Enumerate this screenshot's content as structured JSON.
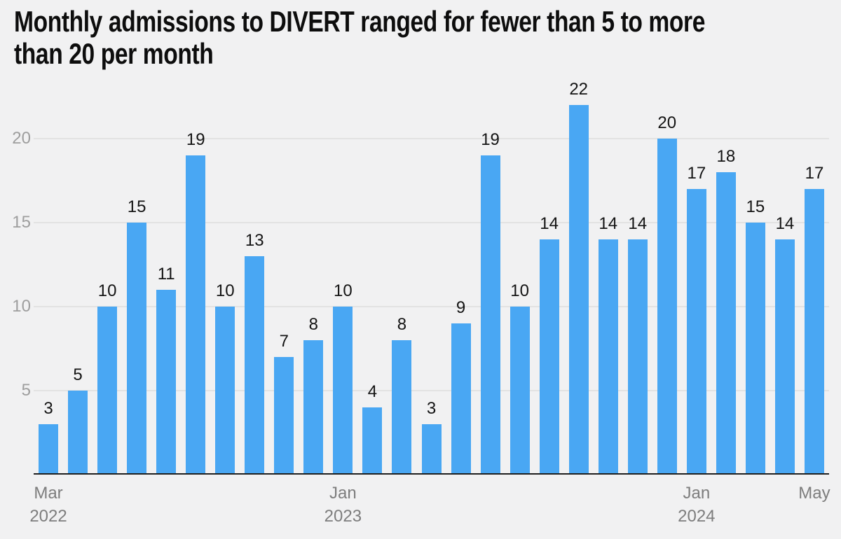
{
  "title": {
    "line1": "Monthly admissions to DIVERT ranged for fewer than 5 to more",
    "line2": "than 20 per month"
  },
  "colors": {
    "bar": "#49a7f3",
    "background": "#f1f1f2",
    "grid": "#e2e2e2",
    "axis": "#1f1f1f",
    "value_label": "#141414",
    "y_tick_label": "#9e9e9e",
    "x_tick_label": "#7d7d7d",
    "title_text": "#0d0d0d"
  },
  "chart_data": {
    "type": "bar",
    "title": "Monthly admissions to DIVERT ranged for fewer than 5 to more than 20 per month",
    "categories": [
      "Mar 2022",
      "Apr 2022",
      "May 2022",
      "Jun 2022",
      "Jul 2022",
      "Aug 2022",
      "Sep 2022",
      "Oct 2022",
      "Nov 2022",
      "Dec 2022",
      "Jan 2023",
      "Feb 2023",
      "Mar 2023",
      "Apr 2023",
      "May 2023",
      "Jun 2023",
      "Jul 2023",
      "Aug 2023",
      "Sep 2023",
      "Oct 2023",
      "Nov 2023",
      "Dec 2023",
      "Jan 2024",
      "Feb 2024",
      "Mar 2024",
      "Apr 2024",
      "May 2024"
    ],
    "values": [
      3,
      5,
      10,
      15,
      11,
      19,
      10,
      13,
      7,
      8,
      10,
      4,
      8,
      3,
      9,
      19,
      10,
      14,
      22,
      14,
      14,
      20,
      17,
      18,
      15,
      14,
      17
    ],
    "xlabel": "",
    "ylabel": "",
    "ylim": [
      0,
      23
    ],
    "y_ticks": [
      5,
      10,
      15,
      20
    ],
    "grid": "horizontal",
    "legend": "none",
    "value_labels": true,
    "x_tick_labels": [
      {
        "category_index": 0,
        "lines": [
          "Mar",
          "2022"
        ]
      },
      {
        "category_index": 10,
        "lines": [
          "Jan",
          "2023"
        ]
      },
      {
        "category_index": 22,
        "lines": [
          "Jan",
          "2024"
        ]
      },
      {
        "category_index": 26,
        "lines": [
          "May"
        ]
      }
    ]
  }
}
